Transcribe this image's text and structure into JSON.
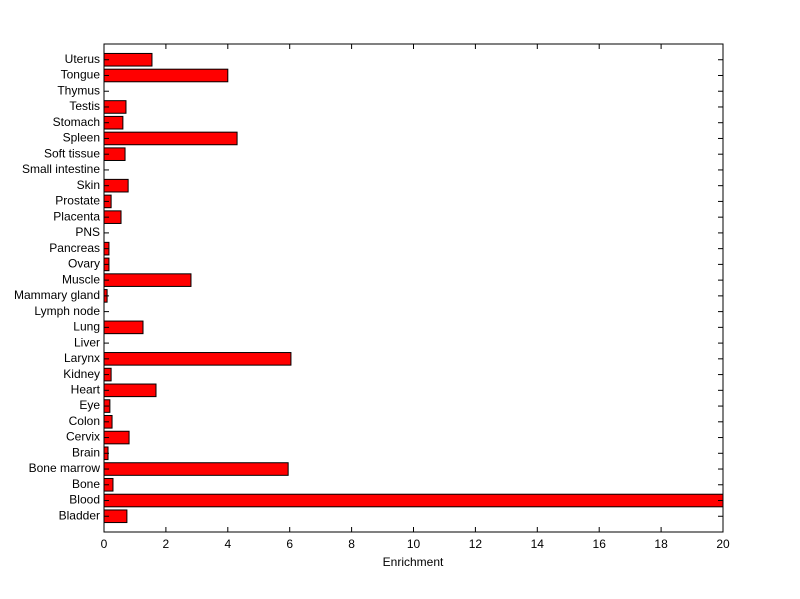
{
  "chart_data": {
    "type": "barh",
    "xlabel": "Enrichment",
    "categories": [
      "Bladder",
      "Blood",
      "Bone",
      "Bone marrow",
      "Brain",
      "Cervix",
      "Colon",
      "Eye",
      "Heart",
      "Kidney",
      "Larynx",
      "Liver",
      "Lung",
      "Lymph node",
      "Mammary gland",
      "Muscle",
      "Ovary",
      "Pancreas",
      "PNS",
      "Placenta",
      "Prostate",
      "Skin",
      "Small intestine",
      "Soft tissue",
      "Spleen",
      "Stomach",
      "Testis",
      "Thymus",
      "Tongue",
      "Uterus"
    ],
    "values": [
      0.74,
      20,
      0.29,
      5.95,
      0.13,
      0.81,
      0.26,
      0.19,
      1.68,
      0.23,
      6.04,
      0,
      1.26,
      0,
      0.1,
      2.81,
      0.16,
      0.16,
      0,
      0.55,
      0.23,
      0.78,
      0,
      0.68,
      4.3,
      0.61,
      0.71,
      0,
      4.0,
      1.55
    ],
    "color": "#ff0000",
    "xlim": [
      0,
      20
    ],
    "xticks": [
      0,
      2,
      4,
      6,
      8,
      10,
      12,
      14,
      16,
      18,
      20
    ]
  }
}
